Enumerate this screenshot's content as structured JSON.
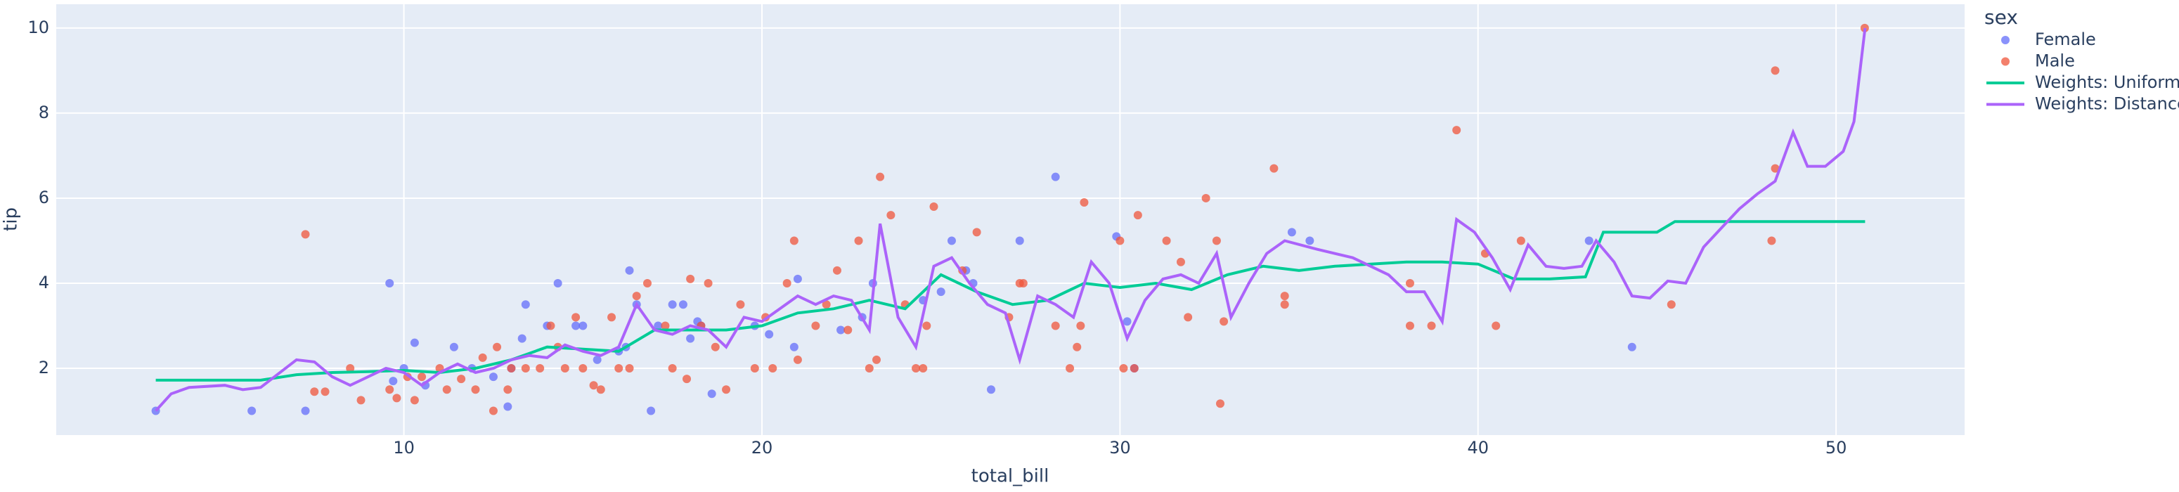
{
  "chart_data": {
    "type": "scatter",
    "x_label": "total_bill",
    "y_label": "tip",
    "legend_title": "sex",
    "legend": "right",
    "grid": true,
    "background": "#e5ecf6",
    "xlim": [
      0.29,
      53.59
    ],
    "xticks": [
      10,
      20,
      30,
      40,
      50
    ],
    "ylim": [
      0.43,
      10.56
    ],
    "yticks": [
      2,
      4,
      6,
      8,
      10
    ],
    "series": [
      {
        "name": "Female",
        "color": "#636efa",
        "mode": "markers",
        "x": [
          3.07,
          5.75,
          7.25,
          9.6,
          10.3,
          10.0,
          10.6,
          11.4,
          12.5,
          12.9,
          13.3,
          13.4,
          14.3,
          14.8,
          15.0,
          15.4,
          16.0,
          16.3,
          16.2,
          16.5,
          16.9,
          17.1,
          17.5,
          17.8,
          18.0,
          18.3,
          18.6,
          19.8,
          20.2,
          20.9,
          21.0,
          22.2,
          22.8,
          23.1,
          24.5,
          25.0,
          25.3,
          25.7,
          25.9,
          26.4,
          27.2,
          28.2,
          29.9,
          30.4,
          30.2,
          34.8,
          35.3,
          43.1,
          44.3,
          9.7,
          11.9,
          13.0,
          14.0,
          18.2
        ],
        "values": [
          1.0,
          1.0,
          1.0,
          4.0,
          2.6,
          2.0,
          1.6,
          2.5,
          1.8,
          1.1,
          2.7,
          3.5,
          4.0,
          3.0,
          3.0,
          2.2,
          2.4,
          4.3,
          2.5,
          3.5,
          1.0,
          3.0,
          3.5,
          3.5,
          2.7,
          3.0,
          1.4,
          3.0,
          2.8,
          2.5,
          4.1,
          2.9,
          3.2,
          4.0,
          3.6,
          3.8,
          5.0,
          4.3,
          4.0,
          1.5,
          5.0,
          6.5,
          5.1,
          2.0,
          3.1,
          5.2,
          5.0,
          5.0,
          2.5,
          1.7,
          2.0,
          2.0,
          3.0,
          3.1
        ]
      },
      {
        "name": "Male",
        "color": "#ef553b",
        "mode": "markers",
        "x": [
          7.25,
          7.5,
          7.8,
          8.5,
          8.8,
          9.6,
          9.8,
          10.1,
          10.3,
          10.5,
          11.0,
          11.2,
          11.6,
          12.0,
          12.2,
          12.5,
          12.6,
          12.9,
          13.0,
          13.4,
          13.8,
          14.1,
          14.3,
          14.5,
          14.8,
          15.0,
          15.3,
          15.5,
          15.8,
          16.0,
          16.3,
          16.5,
          16.8,
          17.3,
          17.5,
          17.9,
          18.0,
          18.3,
          18.5,
          18.7,
          19.0,
          19.4,
          19.8,
          20.1,
          20.3,
          20.7,
          20.9,
          21.0,
          21.5,
          21.8,
          22.1,
          22.4,
          22.7,
          23.0,
          23.2,
          23.3,
          23.6,
          24.0,
          24.3,
          24.5,
          24.6,
          24.8,
          25.6,
          26.0,
          26.9,
          27.2,
          27.3,
          28.2,
          28.6,
          28.8,
          28.9,
          29.0,
          30.0,
          30.1,
          30.5,
          30.4,
          31.3,
          31.7,
          31.9,
          32.4,
          32.7,
          32.8,
          32.9,
          34.3,
          34.6,
          34.6,
          38.1,
          38.1,
          38.7,
          39.4,
          40.2,
          40.5,
          41.2,
          45.4,
          48.2,
          48.3,
          48.3,
          50.8
        ],
        "values": [
          5.15,
          1.45,
          1.45,
          2.0,
          1.25,
          1.5,
          1.3,
          1.8,
          1.25,
          1.8,
          2.0,
          1.5,
          1.75,
          1.5,
          2.25,
          1.0,
          2.5,
          1.5,
          2.0,
          2.0,
          2.0,
          3.0,
          2.5,
          2.0,
          3.2,
          2.0,
          1.6,
          1.5,
          3.2,
          2.0,
          2.0,
          3.7,
          4.0,
          3.0,
          2.0,
          1.75,
          4.1,
          3.0,
          4.0,
          2.5,
          1.5,
          3.5,
          2.0,
          3.2,
          2.0,
          4.0,
          5.0,
          2.2,
          3.0,
          3.5,
          4.3,
          2.9,
          5.0,
          2.0,
          2.2,
          6.5,
          5.6,
          3.5,
          2.0,
          2.0,
          3.0,
          5.8,
          4.3,
          5.2,
          3.2,
          4.0,
          4.0,
          3.0,
          2.0,
          2.5,
          3.0,
          5.9,
          5.0,
          2.0,
          5.6,
          2.0,
          5.0,
          4.5,
          3.2,
          6.0,
          5.0,
          1.17,
          3.1,
          6.7,
          3.5,
          3.7,
          3.0,
          4.0,
          3.0,
          7.6,
          4.7,
          3.0,
          5.0,
          3.5,
          5.0,
          6.7,
          9.0,
          10.0
        ]
      },
      {
        "name": "Weights: Uniform",
        "color": "#00cc96",
        "mode": "lines",
        "x": [
          3.07,
          6,
          7,
          8,
          9,
          10,
          11,
          12,
          13,
          14,
          15,
          16,
          17,
          18,
          19,
          20,
          21,
          22,
          23,
          24,
          25,
          26,
          27,
          28,
          29,
          30,
          31,
          32,
          33,
          34,
          35,
          36,
          37,
          38,
          39,
          40,
          41,
          42,
          43,
          43.5,
          45,
          45.5,
          50.81
        ],
        "values": [
          1.72,
          1.72,
          1.85,
          1.9,
          1.92,
          1.95,
          1.9,
          2.0,
          2.2,
          2.5,
          2.45,
          2.4,
          2.9,
          2.9,
          2.9,
          3.0,
          3.3,
          3.4,
          3.6,
          3.4,
          4.2,
          3.8,
          3.5,
          3.6,
          4.0,
          3.9,
          4.0,
          3.85,
          4.2,
          4.4,
          4.3,
          4.4,
          4.45,
          4.5,
          4.5,
          4.45,
          4.1,
          4.1,
          4.15,
          5.2,
          5.2,
          5.45,
          5.45
        ]
      },
      {
        "name": "Weights: Distance",
        "color": "#ab63fa",
        "mode": "lines",
        "x": [
          3.07,
          3.5,
          4,
          5,
          5.5,
          6,
          7,
          7.5,
          8,
          8.5,
          9,
          9.5,
          10,
          10.5,
          11,
          11.5,
          12,
          12.5,
          13,
          13.5,
          14,
          14.5,
          15,
          15.5,
          16,
          16.5,
          17,
          17.5,
          18,
          18.5,
          19,
          19.5,
          20,
          20.5,
          21,
          21.5,
          22,
          22.5,
          23,
          23.3,
          23.8,
          24.3,
          24.8,
          25.3,
          25.8,
          26.3,
          26.8,
          27.2,
          27.7,
          28.2,
          28.7,
          29.2,
          29.7,
          30.2,
          30.7,
          31.2,
          31.7,
          32.2,
          32.7,
          33.1,
          33.6,
          34.1,
          34.6,
          35.5,
          36.5,
          37.5,
          38,
          38.5,
          39,
          39.4,
          39.9,
          40.4,
          40.9,
          41.4,
          41.9,
          42.4,
          42.9,
          43.3,
          43.8,
          44.3,
          44.8,
          45.3,
          45.8,
          46.3,
          46.8,
          47.3,
          47.8,
          48.3,
          48.8,
          49.2,
          49.7,
          50.2,
          50.5,
          50.81
        ],
        "values": [
          1.0,
          1.4,
          1.55,
          1.6,
          1.5,
          1.55,
          2.2,
          2.15,
          1.8,
          1.6,
          1.8,
          2.0,
          1.9,
          1.6,
          1.9,
          2.1,
          1.9,
          2.0,
          2.2,
          2.3,
          2.25,
          2.55,
          2.4,
          2.3,
          2.5,
          3.5,
          2.9,
          2.8,
          3.0,
          2.9,
          2.5,
          3.2,
          3.1,
          3.4,
          3.7,
          3.5,
          3.7,
          3.6,
          2.9,
          5.4,
          3.2,
          2.5,
          4.4,
          4.6,
          4.0,
          3.5,
          3.3,
          2.2,
          3.7,
          3.5,
          3.2,
          4.5,
          4.0,
          2.7,
          3.6,
          4.1,
          4.2,
          4.0,
          4.7,
          3.2,
          4.0,
          4.7,
          5.0,
          4.8,
          4.6,
          4.2,
          3.8,
          3.8,
          3.1,
          5.5,
          5.2,
          4.6,
          3.85,
          4.9,
          4.4,
          4.35,
          4.4,
          5.0,
          4.5,
          3.7,
          3.65,
          4.05,
          4.0,
          4.85,
          5.3,
          5.75,
          6.1,
          6.4,
          7.55,
          6.75,
          6.75,
          7.1,
          7.8,
          10.0
        ]
      }
    ]
  }
}
